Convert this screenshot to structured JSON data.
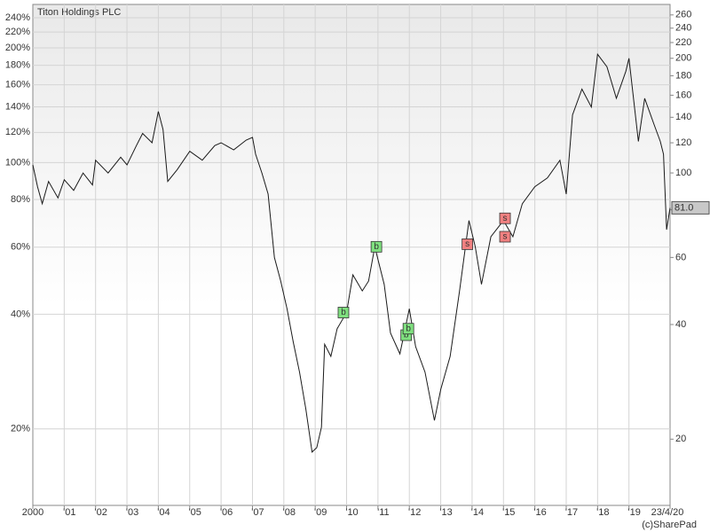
{
  "chart_data": {
    "type": "line",
    "title": "Titon Holdings PLC",
    "credit": "(c)SharePad",
    "log_scale": true,
    "grid": true,
    "xlim": [
      2000,
      2020.31
    ],
    "xticks": [
      {
        "value": 2000,
        "label": "2000"
      },
      {
        "value": 2001,
        "label": "'01"
      },
      {
        "value": 2002,
        "label": "'02"
      },
      {
        "value": 2003,
        "label": "'03"
      },
      {
        "value": 2004,
        "label": "'04"
      },
      {
        "value": 2005,
        "label": "'05"
      },
      {
        "value": 2006,
        "label": "'06"
      },
      {
        "value": 2007,
        "label": "'07"
      },
      {
        "value": 2008,
        "label": "'08"
      },
      {
        "value": 2009,
        "label": "'09"
      },
      {
        "value": 2010,
        "label": "'10"
      },
      {
        "value": 2011,
        "label": "'11"
      },
      {
        "value": 2012,
        "label": "'12"
      },
      {
        "value": 2013,
        "label": "'13"
      },
      {
        "value": 2014,
        "label": "'14"
      },
      {
        "value": 2015,
        "label": "'15"
      },
      {
        "value": 2016,
        "label": "'16"
      },
      {
        "value": 2017,
        "label": "'17"
      },
      {
        "value": 2018,
        "label": "'18"
      },
      {
        "value": 2019,
        "label": "'19"
      },
      {
        "value": 2020.31,
        "label": "23/4/20"
      }
    ],
    "ylim": [
      12.6,
      260
    ],
    "yticks": [
      {
        "value": 20,
        "label": "20%"
      },
      {
        "value": 40,
        "label": "40%"
      },
      {
        "value": 60,
        "label": "60%"
      },
      {
        "value": 80,
        "label": "80%"
      },
      {
        "value": 100,
        "label": "100%"
      },
      {
        "value": 120,
        "label": "120%"
      },
      {
        "value": 140,
        "label": "140%"
      },
      {
        "value": 160,
        "label": "160%"
      },
      {
        "value": 180,
        "label": "180%"
      },
      {
        "value": 200,
        "label": "200%"
      },
      {
        "value": 220,
        "label": "220%"
      },
      {
        "value": 240,
        "label": "240%"
      }
    ],
    "y2lim": [
      13.4,
      277
    ],
    "y2ticks": [
      20,
      40,
      60,
      80,
      100,
      120,
      140,
      160,
      180,
      200,
      220,
      240,
      260
    ],
    "series": [
      {
        "name": "Titon Holdings PLC",
        "color": "#1a1a1a",
        "axis": "y2",
        "x": [
          2000,
          2000.15,
          2000.3,
          2000.5,
          2000.8,
          2001,
          2001.3,
          2001.6,
          2001.9,
          2002,
          2002.4,
          2002.8,
          2003,
          2003.3,
          2003.5,
          2003.8,
          2004,
          2004.15,
          2004.3,
          2004.6,
          2005,
          2005.4,
          2005.8,
          2006,
          2006.4,
          2006.8,
          2007,
          2007.1,
          2007.3,
          2007.5,
          2007.7,
          2007.9,
          2008.1,
          2008.3,
          2008.5,
          2008.7,
          2008.9,
          2009.05,
          2009.2,
          2009.3,
          2009.5,
          2009.7,
          2010,
          2010.2,
          2010.5,
          2010.7,
          2010.9,
          2011.2,
          2011.4,
          2011.7,
          2012,
          2012.2,
          2012.5,
          2012.8,
          2013,
          2013.3,
          2013.6,
          2013.9,
          2014.1,
          2014.3,
          2014.6,
          2015,
          2015.3,
          2015.6,
          2016,
          2016.4,
          2016.8,
          2017,
          2017.2,
          2017.5,
          2017.8,
          2018,
          2018.3,
          2018.6,
          2018.9,
          2019,
          2019.3,
          2019.5,
          2019.8,
          2020,
          2020.1,
          2020.2,
          2020.31
        ],
        "values": [
          105,
          92,
          83,
          95,
          86,
          96,
          90,
          100,
          93,
          108,
          100,
          110,
          105,
          118,
          127,
          120,
          145,
          130,
          95,
          102,
          114,
          108,
          118,
          120,
          115,
          122,
          124,
          112,
          100,
          88,
          60,
          52,
          44,
          36,
          30,
          24,
          18.5,
          19,
          21.5,
          35.5,
          33,
          39,
          43,
          54,
          49,
          52,
          64,
          51,
          38,
          33.5,
          44,
          35,
          30,
          22.4,
          27,
          33,
          49,
          75,
          64,
          51,
          68,
          75,
          68,
          83,
          92,
          97,
          108,
          88,
          142,
          166,
          149,
          205,
          190,
          157,
          185,
          200,
          121,
          157,
          134,
          121,
          112,
          71,
          81
        ]
      }
    ],
    "trades": [
      {
        "x": 2009.9,
        "value": 43,
        "label": "b"
      },
      {
        "x": 2010.95,
        "value": 64,
        "label": "b"
      },
      {
        "x": 2011.9,
        "value": 37.5,
        "label": "b"
      },
      {
        "x": 2011.97,
        "value": 39,
        "label": "b"
      },
      {
        "x": 2013.85,
        "value": 65,
        "label": "s"
      },
      {
        "x": 2015.05,
        "value": 76,
        "label": "s"
      },
      {
        "x": 2015.05,
        "value": 68,
        "label": "s"
      }
    ],
    "last_price": {
      "value": 81,
      "label": "81.0"
    }
  }
}
